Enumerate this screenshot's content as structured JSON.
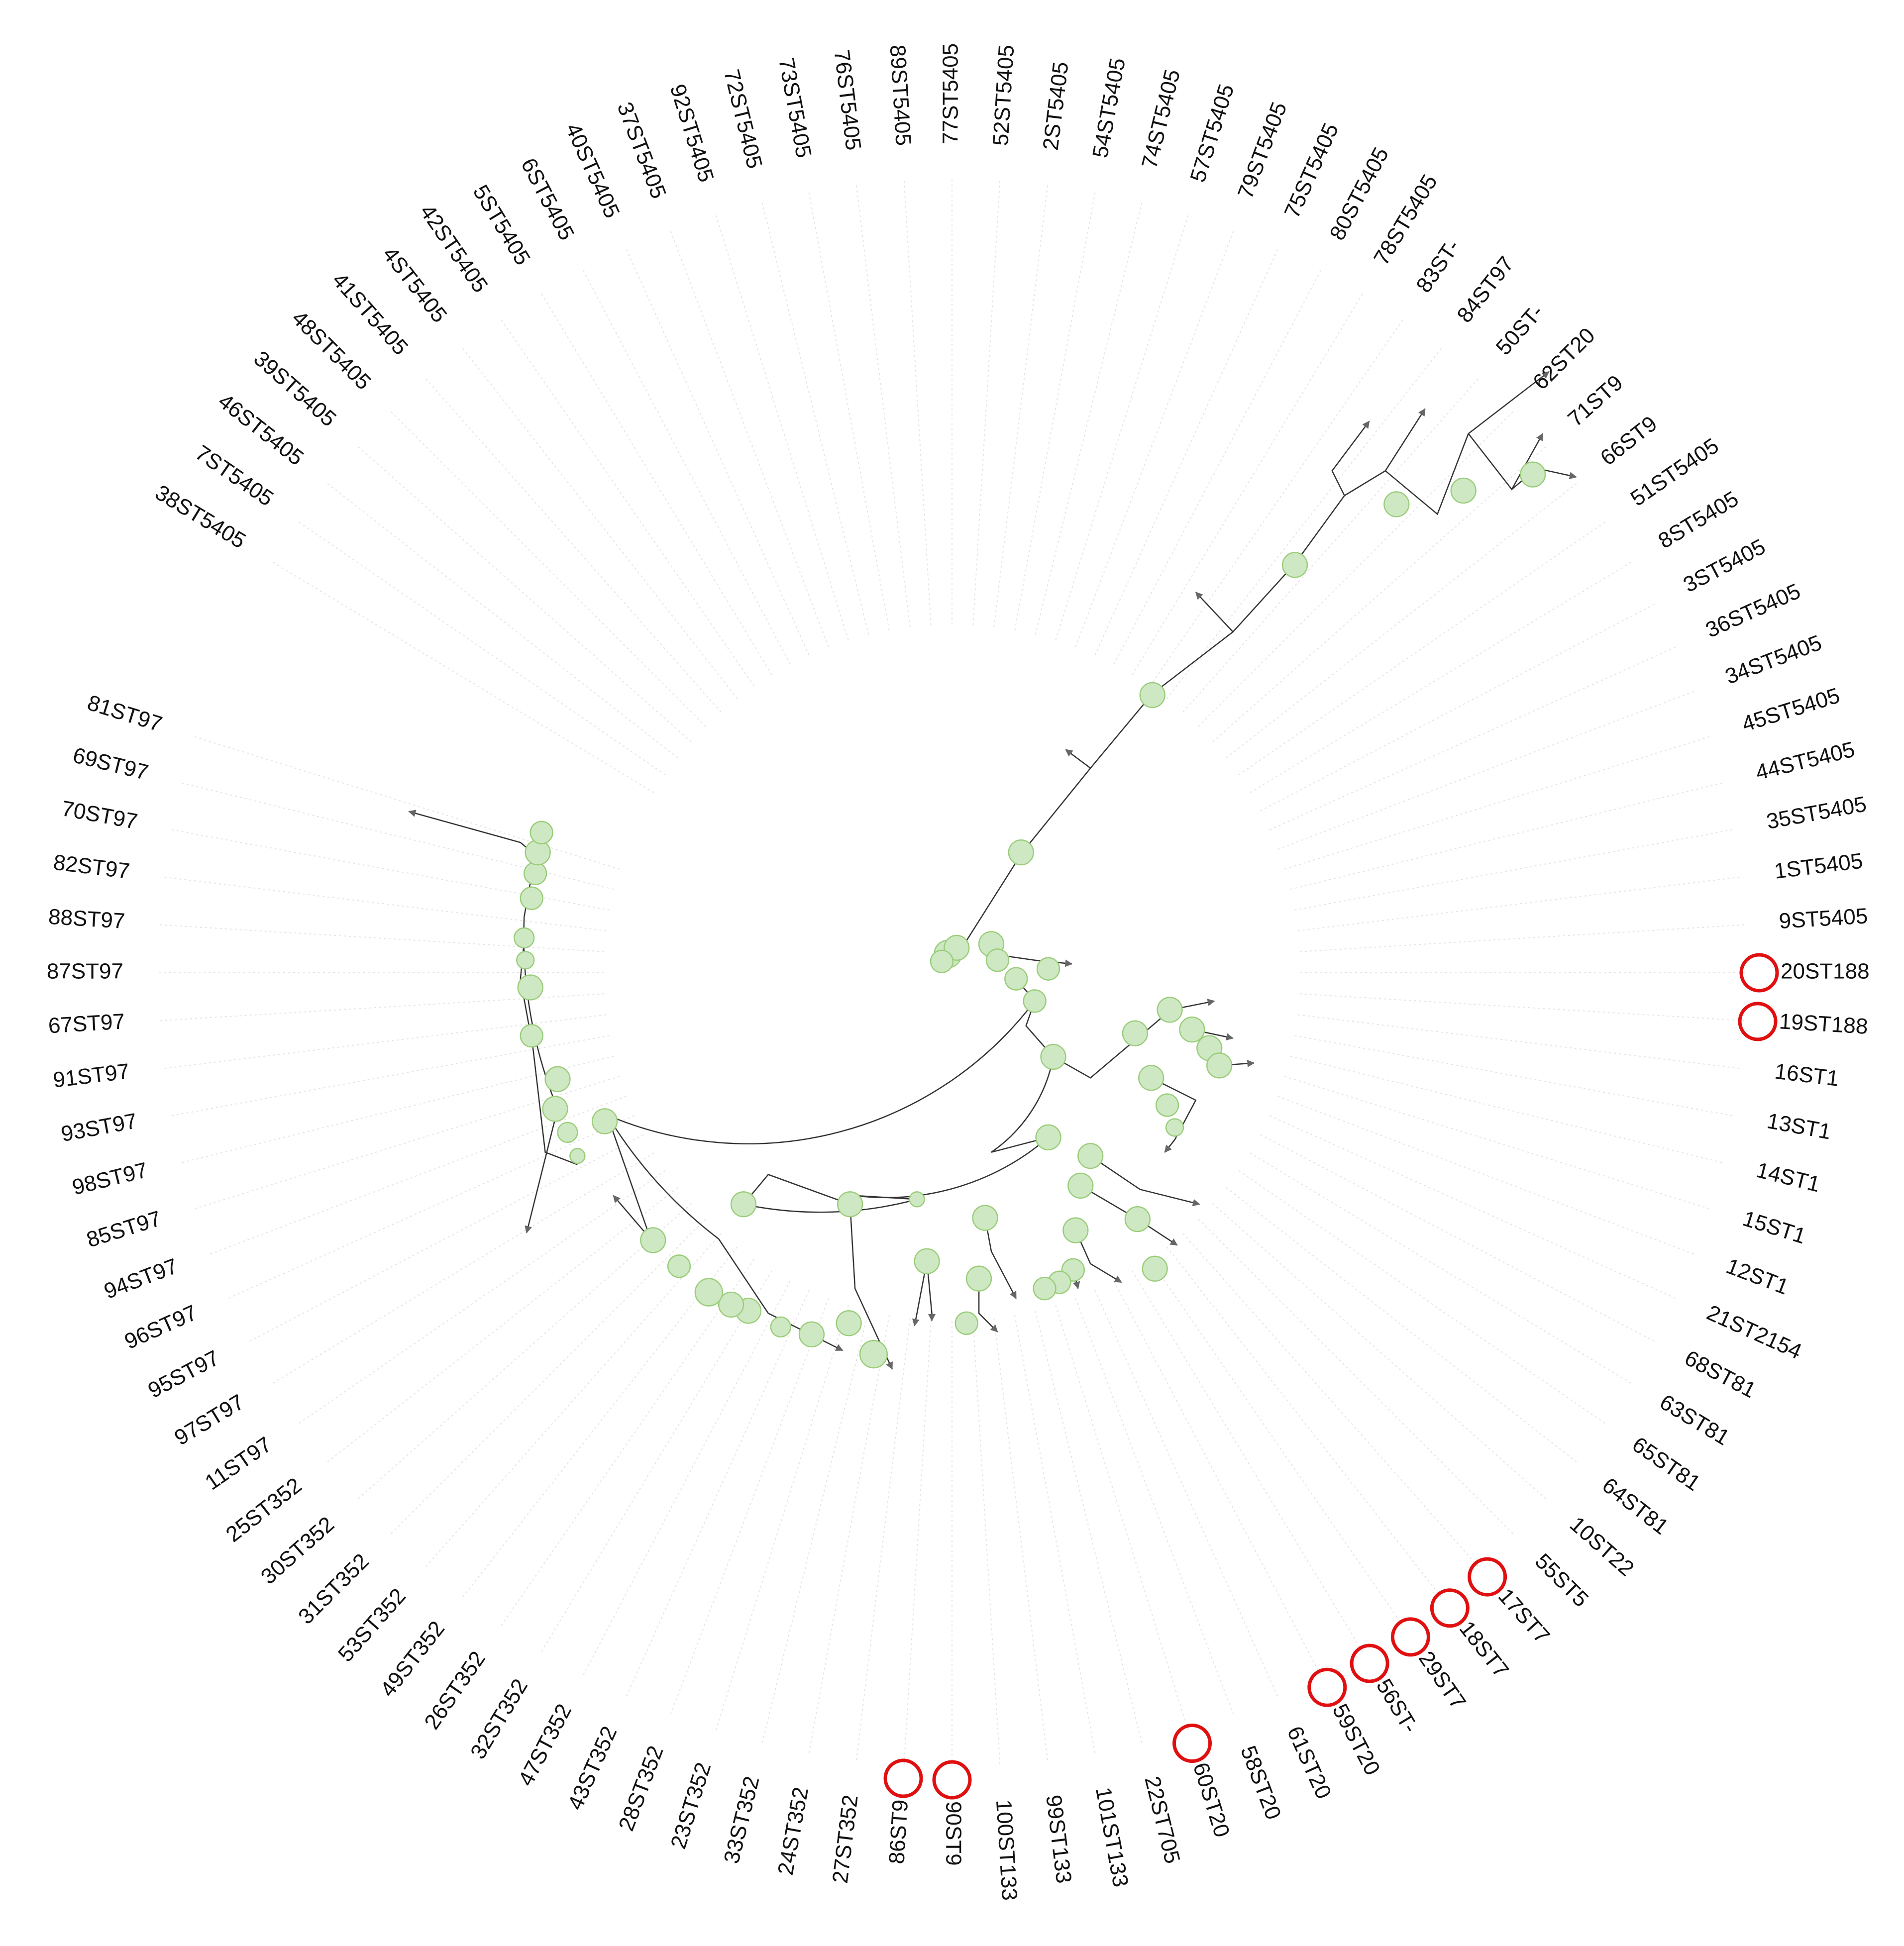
{
  "leaves": [
    {
      "label": "38ST5405"
    },
    {
      "label": "7ST5405"
    },
    {
      "label": "46ST5405"
    },
    {
      "label": "39ST5405"
    },
    {
      "label": "48ST5405"
    },
    {
      "label": "41ST5405"
    },
    {
      "label": "4ST5405"
    },
    {
      "label": "42ST5405"
    },
    {
      "label": "5ST5405"
    },
    {
      "label": "6ST5405"
    },
    {
      "label": "40ST5405"
    },
    {
      "label": "37ST5405"
    },
    {
      "label": "92ST5405"
    },
    {
      "label": "72ST5405"
    },
    {
      "label": "73ST5405"
    },
    {
      "label": "76ST5405"
    },
    {
      "label": "89ST5405"
    },
    {
      "label": "77ST5405"
    },
    {
      "label": "52ST5405"
    },
    {
      "label": "2ST5405"
    },
    {
      "label": "54ST5405"
    },
    {
      "label": "74ST5405"
    },
    {
      "label": "57ST5405"
    },
    {
      "label": "79ST5405"
    },
    {
      "label": "75ST5405"
    },
    {
      "label": "80ST5405"
    },
    {
      "label": "78ST5405"
    },
    {
      "label": "83ST-"
    },
    {
      "label": "84ST97"
    },
    {
      "label": "50ST-"
    },
    {
      "label": "62ST20"
    },
    {
      "label": "71ST9"
    },
    {
      "label": "66ST9"
    },
    {
      "label": "51ST5405"
    },
    {
      "label": "8ST5405"
    },
    {
      "label": "3ST5405"
    },
    {
      "label": "36ST5405"
    },
    {
      "label": "34ST5405"
    },
    {
      "label": "45ST5405"
    },
    {
      "label": "44ST5405"
    },
    {
      "label": "35ST5405"
    },
    {
      "label": "1ST5405"
    },
    {
      "label": "9ST5405"
    },
    {
      "label": "20ST188",
      "circled": true
    },
    {
      "label": "19ST188",
      "circled": true
    },
    {
      "label": "16ST1"
    },
    {
      "label": "13ST1"
    },
    {
      "label": "14ST1"
    },
    {
      "label": "15ST1"
    },
    {
      "label": "12ST1"
    },
    {
      "label": "21ST2154"
    },
    {
      "label": "68ST81"
    },
    {
      "label": "63ST81"
    },
    {
      "label": "65ST81"
    },
    {
      "label": "64ST81"
    },
    {
      "label": "10ST22"
    },
    {
      "label": "55ST5"
    },
    {
      "label": "17ST7",
      "circled": true
    },
    {
      "label": "18ST7",
      "circled": true
    },
    {
      "label": "29ST7",
      "circled": true
    },
    {
      "label": "56ST-",
      "circled": true
    },
    {
      "label": "59ST20",
      "circled": true
    },
    {
      "label": "61ST20"
    },
    {
      "label": "58ST20"
    },
    {
      "label": "60ST20",
      "circled": true
    },
    {
      "label": "22ST705"
    },
    {
      "label": "101ST133"
    },
    {
      "label": "99ST133"
    },
    {
      "label": "100ST133"
    },
    {
      "label": "90ST9",
      "circled": true
    },
    {
      "label": "86ST9",
      "circled": true
    },
    {
      "label": "27ST352"
    },
    {
      "label": "24ST352"
    },
    {
      "label": "33ST352"
    },
    {
      "label": "23ST352"
    },
    {
      "label": "28ST352"
    },
    {
      "label": "43ST352"
    },
    {
      "label": "47ST352"
    },
    {
      "label": "32ST352"
    },
    {
      "label": "26ST352"
    },
    {
      "label": "49ST352"
    },
    {
      "label": "53ST352"
    },
    {
      "label": "31ST352"
    },
    {
      "label": "30ST352"
    },
    {
      "label": "25ST352"
    },
    {
      "label": "11ST97"
    },
    {
      "label": "97ST97"
    },
    {
      "label": "95ST97"
    },
    {
      "label": "96ST97"
    },
    {
      "label": "94ST97"
    },
    {
      "label": "85ST97"
    },
    {
      "label": "98ST97"
    },
    {
      "label": "93ST97"
    },
    {
      "label": "91ST97"
    },
    {
      "label": "67ST97"
    },
    {
      "label": "87ST97"
    },
    {
      "label": "88ST97"
    },
    {
      "label": "82ST97"
    },
    {
      "label": "70ST97"
    },
    {
      "label": "69ST97"
    },
    {
      "label": "81ST97"
    }
  ]
}
